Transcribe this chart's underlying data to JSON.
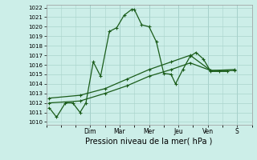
{
  "bg_color": "#cceee8",
  "grid_color": "#aad4cc",
  "line_color": "#1a5c1a",
  "xlabel": "Pression niveau de la mer( hPa )",
  "ylim": [
    1010,
    1022.5
  ],
  "ylim_bottom": 1010,
  "ylim_top": 1022,
  "yticks": [
    1010,
    1011,
    1012,
    1013,
    1014,
    1015,
    1016,
    1017,
    1018,
    1019,
    1020,
    1021,
    1022
  ],
  "day_labels": [
    "Dim",
    "Mar",
    "Mer",
    "Jeu",
    "Ven",
    "S"
  ],
  "day_positions": [
    3,
    5,
    7,
    9,
    11,
    13
  ],
  "xlim": [
    0,
    14
  ],
  "line1_x": [
    0.2,
    0.7,
    1.3,
    1.8,
    2.3,
    2.7,
    3.2,
    3.7,
    4.3,
    4.8,
    5.3,
    5.8,
    6.0,
    6.5,
    7.0,
    7.5,
    8.0,
    8.5,
    8.8,
    9.3,
    9.8,
    10.2,
    10.7,
    11.2,
    11.8,
    12.3
  ],
  "line1_y": [
    1011.5,
    1010.5,
    1012.0,
    1012.0,
    1011.0,
    1012.0,
    1016.3,
    1014.8,
    1019.5,
    1019.9,
    1021.2,
    1021.8,
    1021.8,
    1020.2,
    1020.0,
    1018.4,
    1015.1,
    1015.0,
    1014.0,
    1015.5,
    1016.9,
    1017.3,
    1016.6,
    1015.3,
    1015.3,
    1015.3
  ],
  "line2_x": [
    0.2,
    2.3,
    4.0,
    5.5,
    7.0,
    8.5,
    9.8,
    11.2,
    12.8
  ],
  "line2_y": [
    1012.0,
    1012.2,
    1013.0,
    1013.8,
    1014.8,
    1015.5,
    1016.2,
    1015.4,
    1015.4
  ],
  "line3_x": [
    0.2,
    2.3,
    4.0,
    5.5,
    7.0,
    8.5,
    9.8,
    11.2,
    12.8
  ],
  "line3_y": [
    1012.5,
    1012.8,
    1013.5,
    1014.5,
    1015.5,
    1016.3,
    1017.0,
    1015.4,
    1015.5
  ],
  "marker": "+",
  "markersize": 3,
  "linewidth": 0.9,
  "tick_fontsize": 5,
  "xlabel_fontsize": 7
}
